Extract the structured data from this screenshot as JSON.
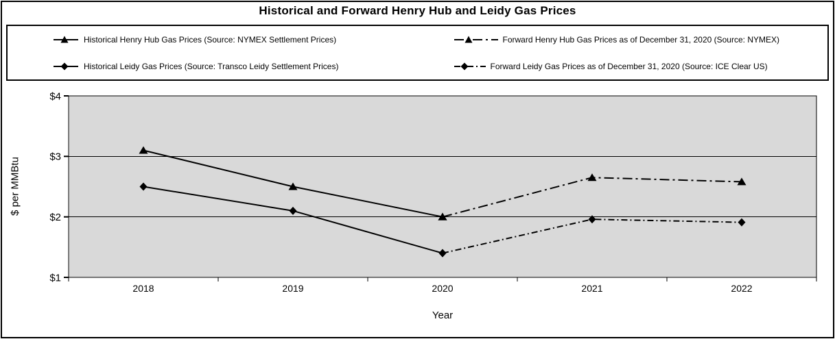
{
  "chart_data": {
    "type": "line",
    "title": "Historical and Forward Henry Hub and Leidy Gas Prices",
    "xlabel": "Year",
    "ylabel": "$ per MMBtu",
    "categories": [
      "2018",
      "2019",
      "2020",
      "2021",
      "2022"
    ],
    "series": [
      {
        "name": "Historical Henry Hub Gas Prices (Source: NYMEX Settlement Prices)",
        "marker": "triangle",
        "line": "solid",
        "x": [
          "2018",
          "2019",
          "2020"
        ],
        "values": [
          3.1,
          2.5,
          2.0
        ]
      },
      {
        "name": "Forward Henry Hub Gas Prices as of December 31, 2020 (Source: NYMEX)",
        "marker": "triangle",
        "line": "dashdot",
        "x": [
          "2020",
          "2021",
          "2022"
        ],
        "values": [
          2.0,
          2.65,
          2.58
        ]
      },
      {
        "name": "Historical Leidy Gas Prices (Source: Transco Leidy Settlement Prices)",
        "marker": "diamond",
        "line": "solid",
        "x": [
          "2018",
          "2019",
          "2020"
        ],
        "values": [
          2.5,
          2.1,
          1.4
        ]
      },
      {
        "name": "Forward Leidy Gas Prices as of December 31, 2020 (Source: ICE Clear US)",
        "marker": "diamond",
        "line": "dashdot-short",
        "x": [
          "2020",
          "2021",
          "2022"
        ],
        "values": [
          1.4,
          1.96,
          1.91
        ]
      }
    ],
    "ylim": [
      1,
      4
    ],
    "yticks": [
      1,
      2,
      3,
      4
    ],
    "ytick_labels": [
      "$1",
      "$2",
      "$3",
      "$4"
    ],
    "gridlines": [
      2,
      3
    ],
    "legend_position": "top",
    "plot_bg": "#d9d9d9",
    "line_color": "#000000"
  }
}
